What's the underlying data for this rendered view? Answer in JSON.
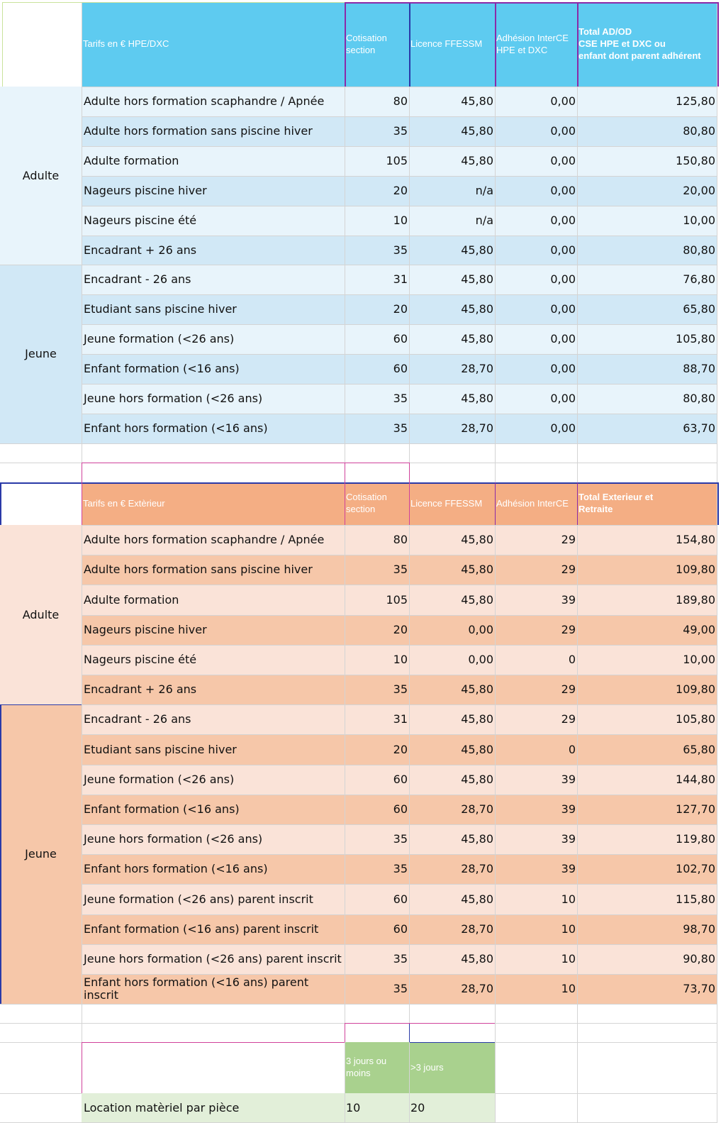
{
  "colors": {
    "blue_header": "#5ecbf0",
    "blue_light": "#e8f4fb",
    "blue_mid": "#d1e8f6",
    "orange_header": "#f4ae84",
    "orange_light": "#fae3d8",
    "orange_mid": "#f6c7a9",
    "green_header": "#a9d18e",
    "green_light": "#e2efd9"
  },
  "hpe": {
    "header": {
      "title": "Tarifs en € HPE/DXC",
      "cotisation": "Cotisation section",
      "licence": "Licence FFESSM",
      "adhesion": "Adhésion InterCE HPE et DXC",
      "total": "Total  AD/OD\nCSE HPE et DXC ou\nenfant dont parent adhérent"
    },
    "groups": [
      "Adulte",
      "Jeune"
    ],
    "rows": [
      {
        "label": "Adulte hors formation scaphandre / Apnée",
        "cotisation": "80",
        "licence": "45,80",
        "adhesion": "0,00",
        "total": "125,80"
      },
      {
        "label": "Adulte hors formation sans piscine hiver",
        "cotisation": "35",
        "licence": "45,80",
        "adhesion": "0,00",
        "total": "80,80"
      },
      {
        "label": "Adulte formation",
        "cotisation": "105",
        "licence": "45,80",
        "adhesion": "0,00",
        "total": "150,80"
      },
      {
        "label": "Nageurs piscine hiver",
        "cotisation": "20",
        "licence": "n/a",
        "adhesion": "0,00",
        "total": "20,00"
      },
      {
        "label": "Nageurs piscine été",
        "cotisation": "10",
        "licence": "n/a",
        "adhesion": "0,00",
        "total": "10,00"
      },
      {
        "label": "Encadrant + 26 ans",
        "cotisation": "35",
        "licence": "45,80",
        "adhesion": "0,00",
        "total": "80,80"
      },
      {
        "label": "Encadrant - 26 ans",
        "cotisation": "31",
        "licence": "45,80",
        "adhesion": "0,00",
        "total": "76,80"
      },
      {
        "label": "Etudiant sans piscine hiver",
        "cotisation": "20",
        "licence": "45,80",
        "adhesion": "0,00",
        "total": "65,80"
      },
      {
        "label": "Jeune formation (<26 ans)",
        "cotisation": "60",
        "licence": "45,80",
        "adhesion": "0,00",
        "total": "105,80"
      },
      {
        "label": "Enfant formation (<16 ans)",
        "cotisation": "60",
        "licence": "28,70",
        "adhesion": "0,00",
        "total": "88,70"
      },
      {
        "label": "Jeune hors formation (<26 ans)",
        "cotisation": "35",
        "licence": "45,80",
        "adhesion": "0,00",
        "total": "80,80"
      },
      {
        "label": "Enfant hors formation (<16 ans)",
        "cotisation": "35",
        "licence": "28,70",
        "adhesion": "0,00",
        "total": "63,70"
      }
    ]
  },
  "ext": {
    "header": {
      "title": "Tarifs en € Extèrieur",
      "cotisation": "Cotisation section",
      "licence": "Licence FFESSM",
      "adhesion": "Adhésion InterCE",
      "total": "Total Exterieur et\nRetraite"
    },
    "groups": [
      "Adulte",
      "Jeune"
    ],
    "rows": [
      {
        "label": "Adulte hors formation scaphandre / Apnée",
        "cotisation": "80",
        "licence": "45,80",
        "adhesion": "29",
        "total": "154,80"
      },
      {
        "label": "Adulte hors formation sans piscine hiver",
        "cotisation": "35",
        "licence": "45,80",
        "adhesion": "29",
        "total": "109,80"
      },
      {
        "label": "Adulte formation",
        "cotisation": "105",
        "licence": "45,80",
        "adhesion": "39",
        "total": "189,80"
      },
      {
        "label": "Nageurs piscine hiver",
        "cotisation": "20",
        "licence": "0,00",
        "adhesion": "29",
        "total": "49,00"
      },
      {
        "label": "Nageurs piscine été",
        "cotisation": "10",
        "licence": "0,00",
        "adhesion": "0",
        "total": "10,00"
      },
      {
        "label": "Encadrant + 26 ans",
        "cotisation": "35",
        "licence": "45,80",
        "adhesion": "29",
        "total": "109,80"
      },
      {
        "label": "Encadrant - 26 ans",
        "cotisation": "31",
        "licence": "45,80",
        "adhesion": "29",
        "total": "105,80"
      },
      {
        "label": "Etudiant sans piscine hiver",
        "cotisation": "20",
        "licence": "45,80",
        "adhesion": "0",
        "total": "65,80"
      },
      {
        "label": "Jeune formation (<26 ans)",
        "cotisation": "60",
        "licence": "45,80",
        "adhesion": "39",
        "total": "144,80"
      },
      {
        "label": "Enfant formation (<16 ans)",
        "cotisation": "60",
        "licence": "28,70",
        "adhesion": "39",
        "total": "127,70"
      },
      {
        "label": "Jeune hors formation (<26 ans)",
        "cotisation": "35",
        "licence": "45,80",
        "adhesion": "39",
        "total": "119,80"
      },
      {
        "label": "Enfant hors formation (<16 ans)",
        "cotisation": "35",
        "licence": "28,70",
        "adhesion": "39",
        "total": "102,70"
      },
      {
        "label": "Jeune formation (<26 ans) parent inscrit",
        "cotisation": "60",
        "licence": "45,80",
        "adhesion": "10",
        "total": "115,80"
      },
      {
        "label": "Enfant formation (<16 ans) parent inscrit",
        "cotisation": "60",
        "licence": "28,70",
        "adhesion": "10",
        "total": "98,70"
      },
      {
        "label": "Jeune hors formation (<26 ans) parent inscrit",
        "cotisation": "35",
        "licence": "45,80",
        "adhesion": "10",
        "total": "90,80"
      },
      {
        "label": "Enfant hors formation (<16 ans) parent inscrit",
        "cotisation": "35",
        "licence": "28,70",
        "adhesion": "10",
        "total": "73,70"
      }
    ]
  },
  "location": {
    "col1": "3 jours ou moins",
    "col2": ">3 jours",
    "label": "Location matèriel par pièce",
    "v1": "10",
    "v2": "20"
  }
}
